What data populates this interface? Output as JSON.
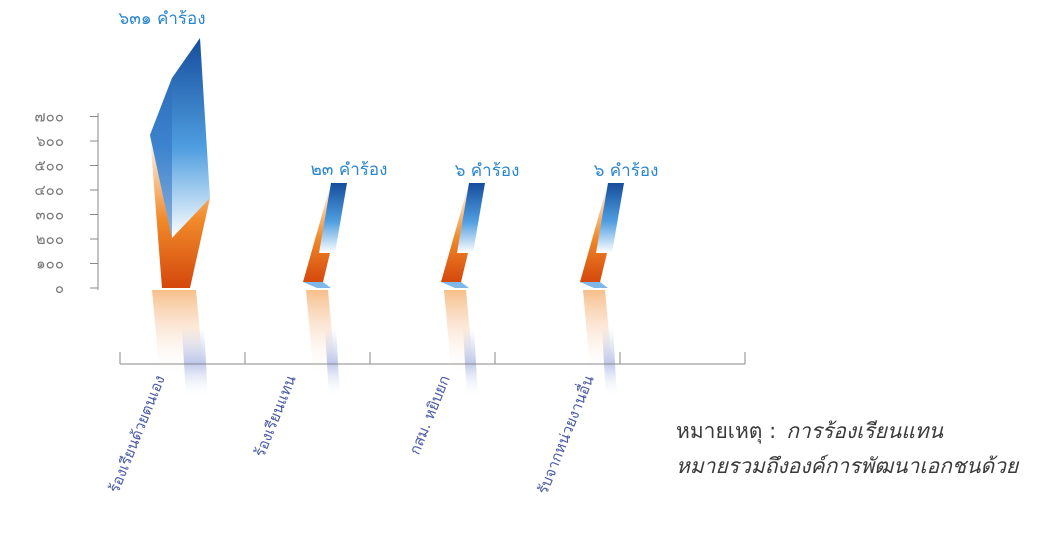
{
  "chart_data": {
    "type": "bar",
    "categories": [
      "ร้องเรียนด้วยตนเอง",
      "ร้องเรียนแทน",
      "กสม. หยิบยก",
      "รับจากหน่วยงานอื่น"
    ],
    "values": [
      631,
      23,
      6,
      6
    ],
    "value_labels": [
      "๖๓๑ คำร้อง",
      "๒๓ คำร้อง",
      "๖ คำร้อง",
      "๖ คำร้อง"
    ],
    "y_ticks": [
      {
        "value": 0,
        "label": "๐"
      },
      {
        "value": 100,
        "label": "๑๐๐"
      },
      {
        "value": 200,
        "label": "๒๐๐"
      },
      {
        "value": 300,
        "label": "๓๐๐"
      },
      {
        "value": 400,
        "label": "๔๐๐"
      },
      {
        "value": 500,
        "label": "๕๐๐"
      },
      {
        "value": 600,
        "label": "๖๐๐"
      },
      {
        "value": 700,
        "label": "๗๐๐"
      }
    ],
    "ylim": [
      0,
      700
    ],
    "grid": false,
    "colors": {
      "orange": "#e8741c",
      "orange_light": "#f7b36a",
      "blue": "#1f5fb0",
      "blue_light": "#7fb8e8",
      "value_label": "#2a86d0",
      "category_label": "#4a5aa6",
      "axis": "#8a8a8a",
      "tick_label": "#7a7a7a"
    }
  },
  "note": {
    "label": "หมายเหตุ  :",
    "line1": "การร้องเรียนแทน",
    "line2": "หมายรวมถึงองค์การพัฒนาเอกชนด้วย"
  }
}
